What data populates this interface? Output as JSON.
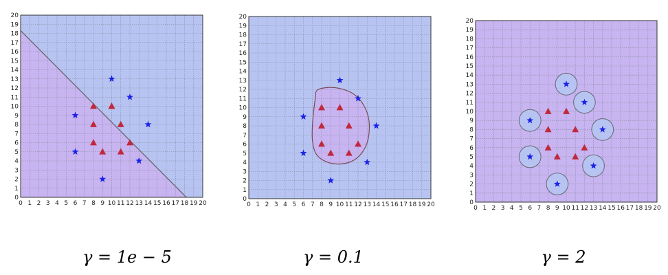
{
  "chart_data": [
    {
      "type": "scatter",
      "title": "",
      "xlabel": "",
      "ylabel": "",
      "xlim": [
        0,
        20
      ],
      "ylim": [
        0,
        20
      ],
      "xticks": [
        0,
        1,
        2,
        3,
        4,
        5,
        6,
        7,
        8,
        9,
        10,
        11,
        12,
        13,
        14,
        15,
        16,
        17,
        18,
        19,
        20
      ],
      "yticks": [
        0,
        1,
        2,
        3,
        4,
        5,
        6,
        7,
        8,
        9,
        10,
        11,
        12,
        13,
        14,
        15,
        16,
        17,
        18,
        19,
        20
      ],
      "grid": true,
      "caption": "γ = 1e − 5",
      "colors": {
        "class_a_region": "#c7b4f0",
        "class_b_region": "#b7c4f2",
        "triangle": "#c0283c",
        "star": "#1a22e6",
        "grid": "#8a8a9a"
      },
      "series": [
        {
          "marker": "triangle",
          "x": [
            8,
            8,
            8,
            9,
            10,
            10,
            11,
            11,
            12
          ],
          "y": [
            10,
            8,
            6,
            5,
            10,
            10,
            8,
            5,
            6
          ]
        },
        {
          "marker": "star",
          "x": [
            6,
            6,
            9,
            10,
            12,
            13,
            14
          ],
          "y": [
            9,
            5,
            2,
            13,
            11,
            4,
            8
          ]
        }
      ],
      "decision_boundary": {
        "kind": "line",
        "points": [
          [
            0,
            18.3
          ],
          [
            18.2,
            0
          ]
        ]
      }
    },
    {
      "type": "scatter",
      "title": "",
      "xlabel": "",
      "ylabel": "",
      "xlim": [
        0,
        20
      ],
      "ylim": [
        0,
        20
      ],
      "xticks": [
        0,
        1,
        2,
        3,
        4,
        5,
        6,
        7,
        8,
        9,
        10,
        11,
        12,
        13,
        14,
        15,
        16,
        17,
        18,
        19,
        20
      ],
      "yticks": [
        0,
        1,
        2,
        3,
        4,
        5,
        6,
        7,
        8,
        9,
        10,
        11,
        12,
        13,
        14,
        15,
        16,
        17,
        18,
        19,
        20
      ],
      "grid": true,
      "caption": "γ = 0.1",
      "colors": {
        "class_a_region": "#c7b4f0",
        "class_b_region": "#b7c4f2",
        "triangle": "#c0283c",
        "star": "#1a22e6",
        "grid": "#8a8a9a"
      },
      "series": [
        {
          "marker": "triangle",
          "x": [
            8,
            8,
            8,
            9,
            10,
            11,
            11,
            12
          ],
          "y": [
            10,
            8,
            6,
            5,
            10,
            8,
            5,
            6
          ]
        },
        {
          "marker": "star",
          "x": [
            6,
            6,
            9,
            10,
            12,
            13,
            14
          ],
          "y": [
            9,
            5,
            2,
            13,
            11,
            4,
            8
          ]
        }
      ],
      "decision_boundary": {
        "kind": "closed",
        "points": [
          [
            7.3,
            11
          ],
          [
            7.5,
            11.9
          ],
          [
            8.6,
            12.2
          ],
          [
            10,
            12.1
          ],
          [
            11.5,
            11.5
          ],
          [
            12.6,
            10.3
          ],
          [
            13.2,
            8.6
          ],
          [
            13.1,
            6.5
          ],
          [
            12.4,
            5
          ],
          [
            11.3,
            4.1
          ],
          [
            9.8,
            3.8
          ],
          [
            8.4,
            4.1
          ],
          [
            7.4,
            4.9
          ],
          [
            7,
            6.3
          ],
          [
            7,
            8.2
          ]
        ]
      }
    },
    {
      "type": "scatter",
      "title": "",
      "xlabel": "",
      "ylabel": "",
      "xlim": [
        0,
        20
      ],
      "ylim": [
        0,
        20
      ],
      "xticks": [
        0,
        1,
        2,
        3,
        4,
        5,
        6,
        7,
        8,
        9,
        10,
        11,
        12,
        13,
        14,
        15,
        16,
        17,
        18,
        19,
        20
      ],
      "yticks": [
        0,
        1,
        2,
        3,
        4,
        5,
        6,
        7,
        8,
        9,
        10,
        11,
        12,
        13,
        14,
        15,
        16,
        17,
        18,
        19,
        20
      ],
      "grid": true,
      "caption": "γ = 2",
      "colors": {
        "class_a_region": "#c7b4f0",
        "class_b_region": "#b7c4f2",
        "triangle": "#c0283c",
        "star": "#1a22e6",
        "grid": "#8a8a9a"
      },
      "series": [
        {
          "marker": "triangle",
          "x": [
            8,
            8,
            8,
            9,
            10,
            11,
            11,
            12
          ],
          "y": [
            10,
            8,
            6,
            5,
            10,
            8,
            5,
            6
          ]
        },
        {
          "marker": "star",
          "x": [
            6,
            6,
            9,
            10,
            12,
            13,
            14
          ],
          "y": [
            9,
            5,
            2,
            13,
            11,
            4,
            8
          ]
        }
      ],
      "decision_boundary": {
        "kind": "circles_around_stars",
        "radius": 1.2
      }
    }
  ]
}
